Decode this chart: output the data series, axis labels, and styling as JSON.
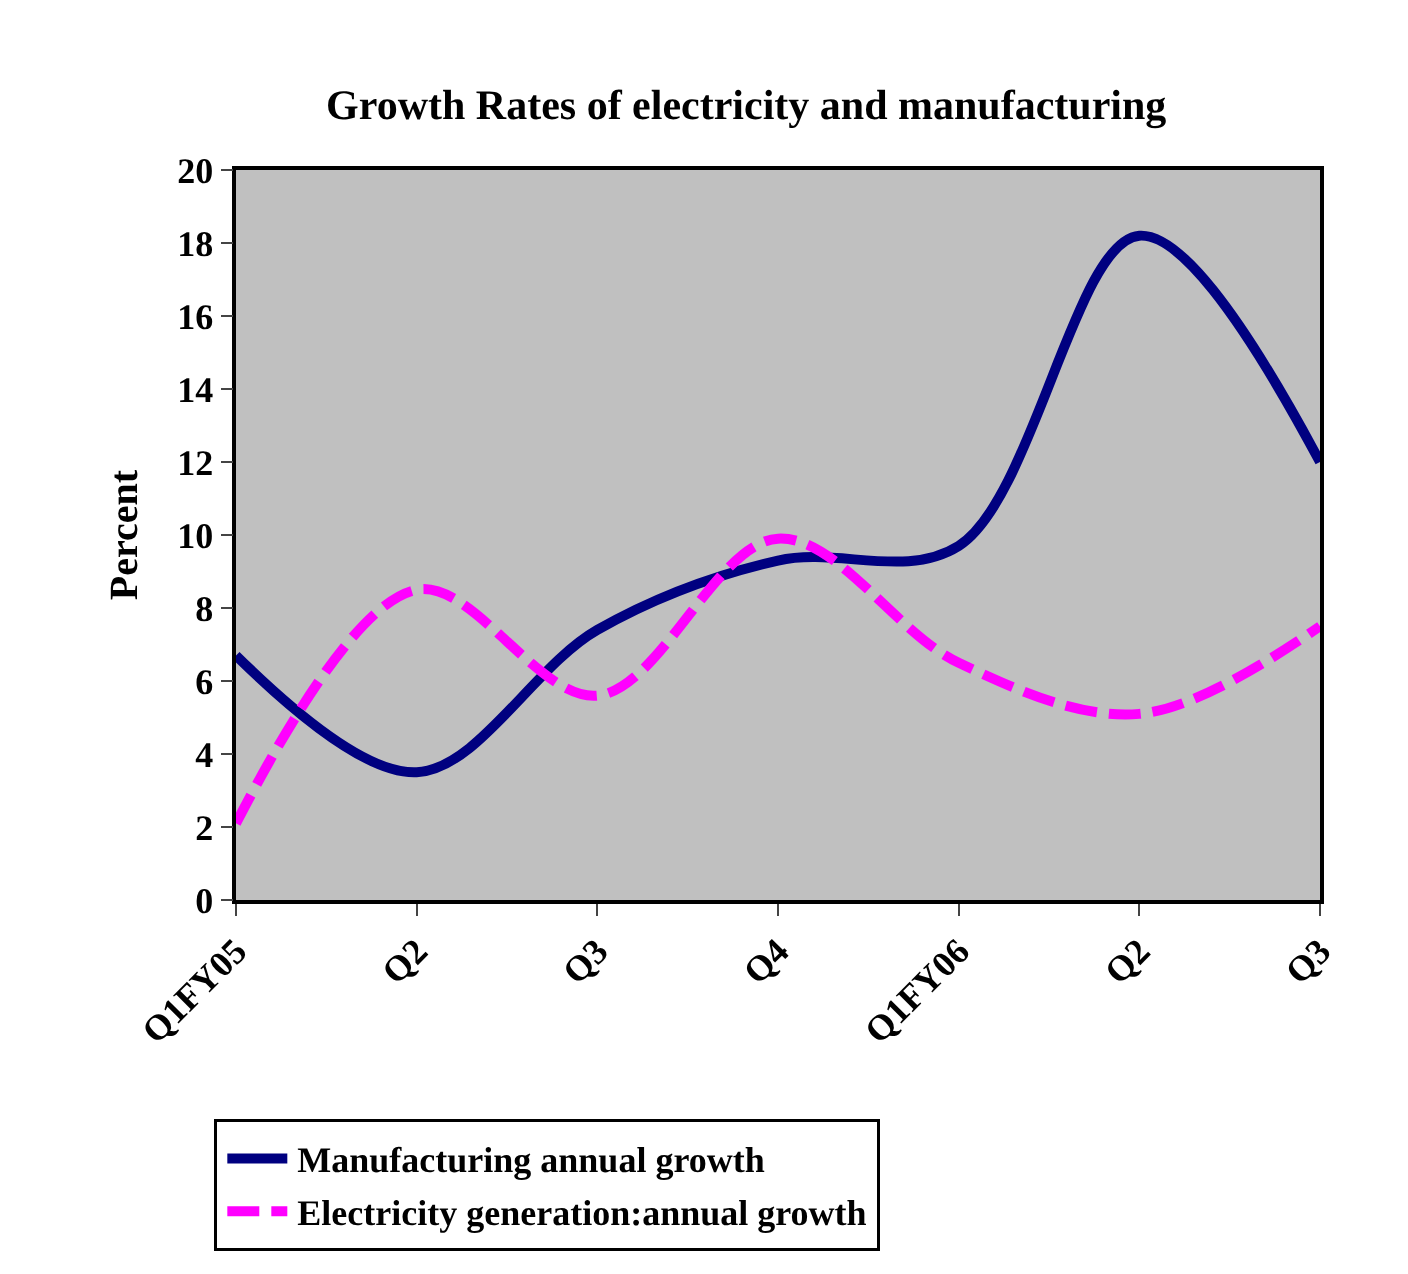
{
  "chart_data": {
    "type": "line",
    "title": "Growth Rates of electricity and manufacturing",
    "ylabel": "Percent",
    "categories": [
      "Q1FY05",
      "Q2",
      "Q3",
      "Q4",
      "Q1FY06",
      "Q2",
      "Q3"
    ],
    "series": [
      {
        "name": "Manufacturing annual growth",
        "color": "#000080",
        "line_style": "solid",
        "values": [
          6.7,
          3.5,
          7.4,
          9.3,
          9.7,
          18.2,
          12.0
        ]
      },
      {
        "name": "Electricity generation:annual growth",
        "color": "#ff00ff",
        "line_style": "dashed",
        "values": [
          2.1,
          8.5,
          5.6,
          9.9,
          6.5,
          5.1,
          7.5
        ]
      }
    ],
    "ylim": [
      0,
      20
    ],
    "yticks": [
      0,
      2,
      4,
      6,
      8,
      10,
      12,
      14,
      16,
      18,
      20
    ],
    "grid": false,
    "legend": "bottom",
    "marker": "none"
  }
}
